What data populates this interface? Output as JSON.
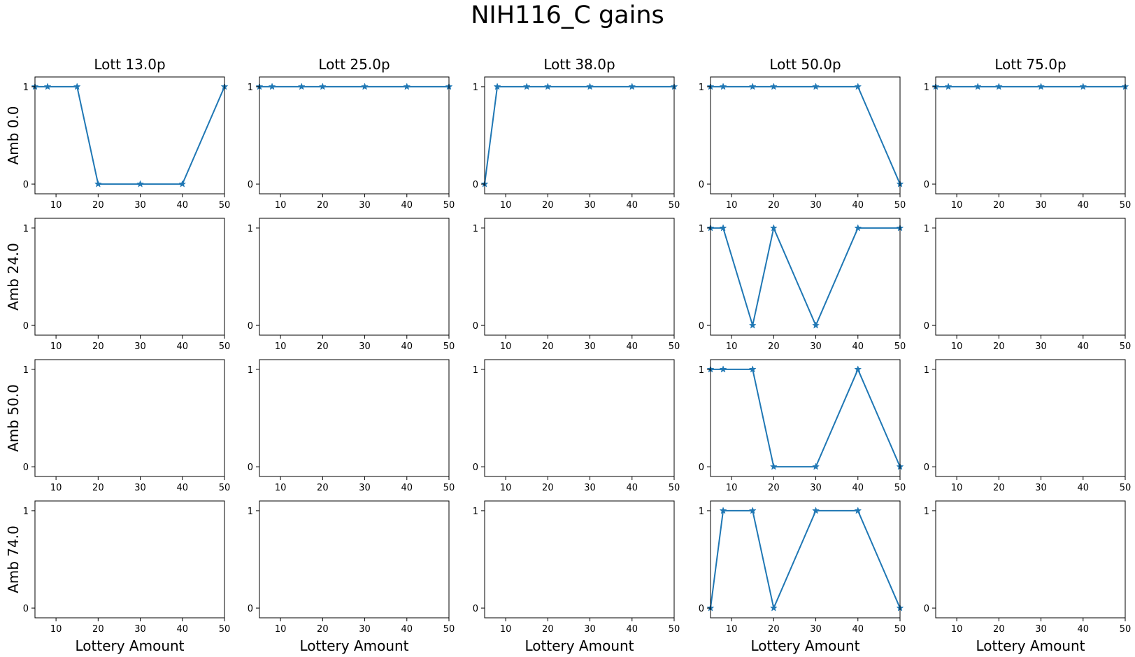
{
  "title": "NIH116_C gains",
  "chart_data": {
    "type": "line",
    "title": "NIH116_C gains",
    "xlabel": "Lottery Amount",
    "xlim": [
      5,
      50
    ],
    "ylim": [
      -0.1,
      1.1
    ],
    "xticks": [
      10,
      20,
      30,
      40,
      50
    ],
    "yticks": [
      0,
      1
    ],
    "marker": "star",
    "line_color": "#1f77b4",
    "columns": [
      "Lott 13.0p",
      "Lott 25.0p",
      "Lott 38.0p",
      "Lott 50.0p",
      "Lott 75.0p"
    ],
    "rows": [
      "Amb 0.0",
      "Amb 24.0",
      "Amb 50.0",
      "Amb 74.0"
    ],
    "x": [
      5,
      8,
      15,
      20,
      30,
      40,
      50
    ],
    "panels": [
      [
        {
          "values": [
            1,
            1,
            1,
            0,
            0,
            0,
            1
          ]
        },
        {
          "values": [
            1,
            1,
            1,
            1,
            1,
            1,
            1
          ]
        },
        {
          "values": [
            0,
            1,
            1,
            1,
            1,
            1,
            1
          ]
        },
        {
          "values": [
            1,
            1,
            1,
            1,
            1,
            1,
            0
          ]
        },
        {
          "values": [
            1,
            1,
            1,
            1,
            1,
            1,
            1
          ]
        }
      ],
      [
        {
          "values": []
        },
        {
          "values": []
        },
        {
          "values": []
        },
        {
          "values": [
            1,
            1,
            0,
            1,
            0,
            1,
            1
          ]
        },
        {
          "values": []
        }
      ],
      [
        {
          "values": []
        },
        {
          "values": []
        },
        {
          "values": []
        },
        {
          "values": [
            1,
            1,
            1,
            0,
            0,
            1,
            0
          ]
        },
        {
          "values": []
        }
      ],
      [
        {
          "values": []
        },
        {
          "values": []
        },
        {
          "values": []
        },
        {
          "values": [
            0,
            1,
            1,
            0,
            1,
            1,
            0
          ]
        },
        {
          "values": []
        }
      ]
    ]
  }
}
